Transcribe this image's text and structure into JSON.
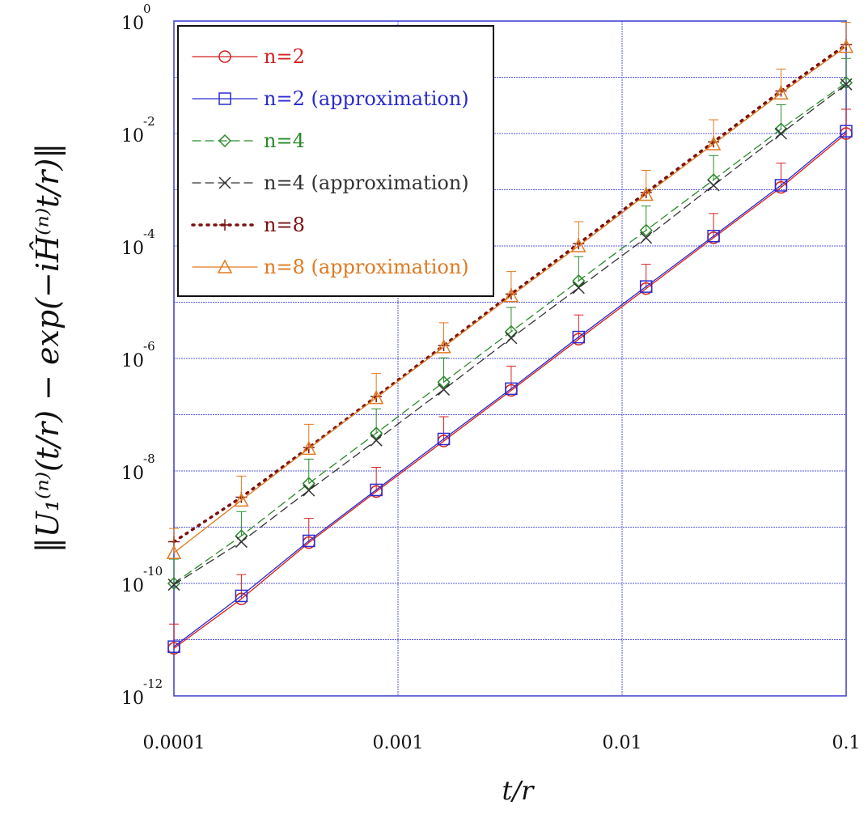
{
  "chart_data": {
    "type": "line",
    "xlabel": "t/r",
    "ylabel": "‖U₁⁽ⁿ⁾(t/r) − exp(−iĤ⁽ⁿ⁾t/r)‖",
    "xscale": "log",
    "yscale": "log",
    "xlim": [
      0.0001,
      0.1
    ],
    "ylim": [
      1e-12,
      1
    ],
    "grid": true,
    "legend_position": "top-left",
    "x_ticks": [
      {
        "value": 0.0001,
        "label": "0.0001"
      },
      {
        "value": 0.001,
        "label": "0.001"
      },
      {
        "value": 0.01,
        "label": "0.01"
      },
      {
        "value": 0.1,
        "label": "0.1"
      }
    ],
    "y_ticks": [
      {
        "value": 1e-12,
        "base": "10",
        "exp": "-12"
      },
      {
        "value": 1e-10,
        "base": "10",
        "exp": "-10"
      },
      {
        "value": 1e-08,
        "base": "10",
        "exp": "-8"
      },
      {
        "value": 1e-06,
        "base": "10",
        "exp": "-6"
      },
      {
        "value": 0.0001,
        "base": "10",
        "exp": "-4"
      },
      {
        "value": 0.01,
        "base": "10",
        "exp": "-2"
      },
      {
        "value": 1,
        "base": "10",
        "exp": "0"
      }
    ],
    "x": [
      0.0001,
      0.0002,
      0.0004,
      0.0008,
      0.0016,
      0.0032,
      0.0064,
      0.0128,
      0.0256,
      0.0512,
      0.1
    ],
    "series": [
      {
        "name": "n=2",
        "color": "#d42020",
        "marker": "circle",
        "line": "solid",
        "errorbars": true,
        "values": [
          7e-12,
          5.3e-11,
          5.3e-10,
          4.3e-09,
          3.4e-08,
          2.7e-07,
          2.2e-06,
          1.75e-05,
          0.00014,
          0.0011,
          0.01
        ]
      },
      {
        "name": "n=2 (approximation)",
        "color": "#2a2ad0",
        "marker": "square",
        "line": "solid",
        "errorbars": false,
        "values": [
          7.5e-12,
          6e-11,
          5.7e-10,
          4.6e-09,
          3.7e-08,
          2.9e-07,
          2.4e-06,
          1.9e-05,
          0.00015,
          0.0012,
          0.011
        ]
      },
      {
        "name": "n=4",
        "color": "#2a8a2a",
        "marker": "diamond",
        "line": "dashed",
        "errorbars": true,
        "values": [
          1e-10,
          7e-10,
          6e-09,
          4.7e-08,
          3.8e-07,
          3e-06,
          2.4e-05,
          0.00019,
          0.0015,
          0.012,
          0.08
        ]
      },
      {
        "name": "n=4 (approximation)",
        "color": "#333333",
        "marker": "cross",
        "line": "dashed",
        "errorbars": false,
        "values": [
          9.5e-11,
          5.5e-10,
          4.5e-09,
          3.5e-08,
          2.8e-07,
          2.3e-06,
          1.8e-05,
          0.00014,
          0.0012,
          0.01,
          0.075
        ]
      },
      {
        "name": "n=8",
        "color": "#7a1010",
        "marker": "plus",
        "line": "dotted",
        "errorbars": false,
        "values": [
          5.5e-10,
          3.4e-09,
          2.6e-08,
          2.1e-07,
          1.7e-06,
          1.4e-05,
          0.00011,
          0.00089,
          0.0071,
          0.057,
          0.38
        ]
      },
      {
        "name": "n=8 (approximation)",
        "color": "#e07a20",
        "marker": "triangle",
        "line": "solid",
        "errorbars": true,
        "values": [
          3.5e-10,
          3e-09,
          2.5e-08,
          2e-07,
          1.6e-06,
          1.3e-05,
          0.0001,
          0.00082,
          0.0065,
          0.052,
          0.35
        ]
      }
    ]
  }
}
